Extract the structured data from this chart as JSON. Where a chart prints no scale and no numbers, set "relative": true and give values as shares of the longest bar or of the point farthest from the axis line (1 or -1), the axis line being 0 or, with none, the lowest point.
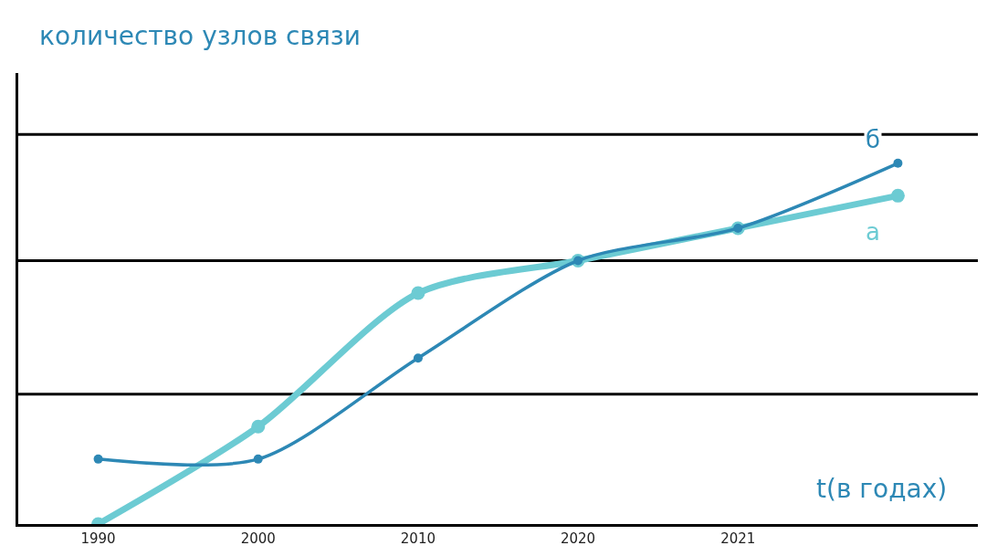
{
  "chart_data": {
    "type": "line",
    "relative": true,
    "ylabel": "количество узлов связи",
    "xlabel": "t(в годах)",
    "categories": [
      "1990",
      "2000",
      "2010",
      "2020",
      "2021",
      null
    ],
    "series": [
      {
        "name": "а",
        "color": "#6ccbd3",
        "values": [
          0,
          0.27,
          0.64,
          0.73,
          0.82,
          0.91
        ]
      },
      {
        "name": "б",
        "color": "#2d88b5",
        "values": [
          0.18,
          0.18,
          0.46,
          0.73,
          0.82,
          1
        ]
      }
    ],
    "ref_lines": [
      {
        "axis": "y",
        "value": 0.36,
        "color": "#000000"
      },
      {
        "axis": "y",
        "value": 0.73,
        "color": "#000000"
      },
      {
        "axis": "y",
        "value": 1.08,
        "color": "#000000"
      }
    ],
    "marker": "circle",
    "line_style": "solid",
    "legend": false
  }
}
